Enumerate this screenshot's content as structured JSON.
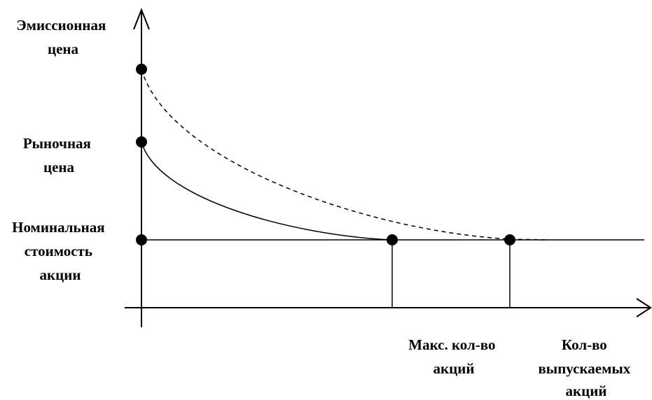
{
  "labels": {
    "emission_price": [
      "Эмиссионная",
      "цена"
    ],
    "market_price": [
      "Рыночная",
      "цена"
    ],
    "nominal_value": [
      "Номинальная",
      "стоимость",
      "акции"
    ],
    "max_shares": [
      "Макс. кол-во",
      "акций"
    ],
    "issued_shares": [
      "Кол-во",
      "выпускаемых",
      "акций"
    ]
  },
  "colors": {
    "stroke": "#000000",
    "background": "#ffffff"
  }
}
